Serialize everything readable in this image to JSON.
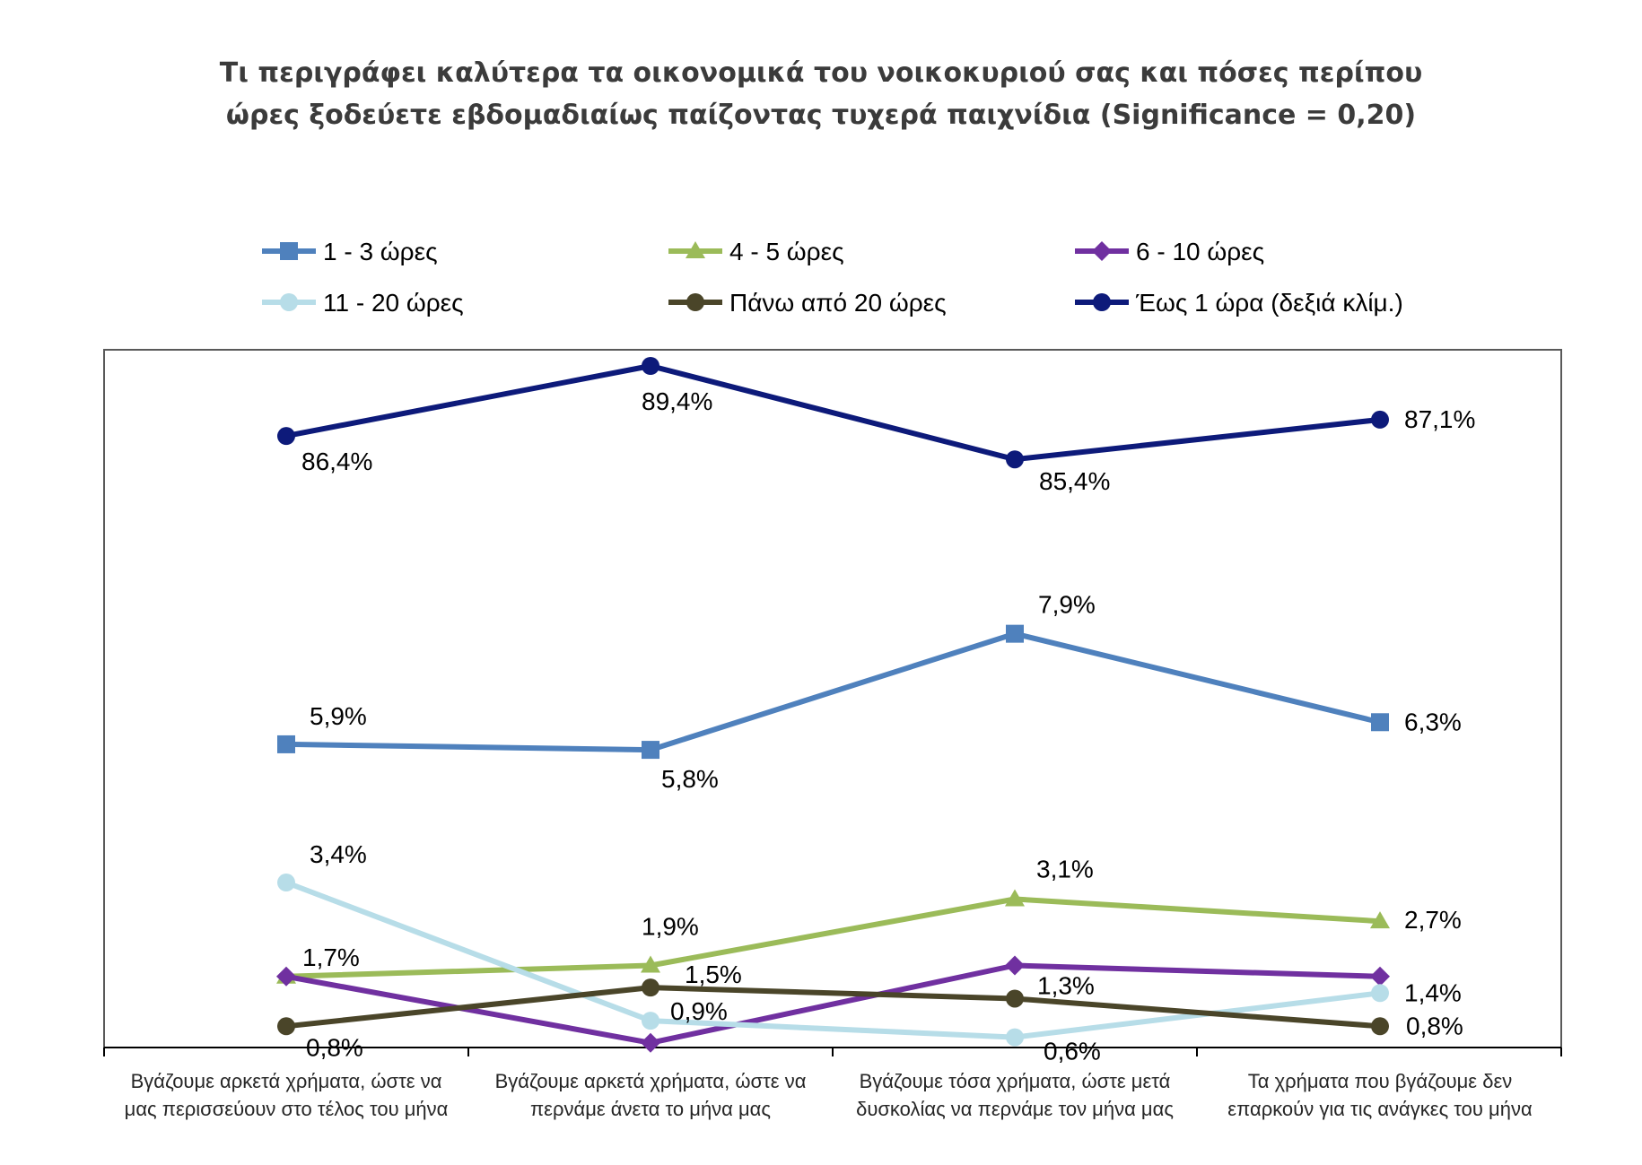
{
  "chart_data": {
    "type": "line",
    "title": "Τι περιγράφει καλύτερα τα οικονομικά του νοικοκυριού σας και πόσες περίπου",
    "subtitle": "ώρες ξοδεύετε εβδομαδιαίως παίζοντας τυχερά παιχνίδια (Significance = 0,20)",
    "categories": [
      [
        "Βγάζουμε αρκετά χρήματα, ώστε να",
        "μας περισσεύουν στο τέλος του μήνα"
      ],
      [
        "Βγάζουμε αρκετά χρήματα, ώστε να",
        "περνάμε άνετα το μήνα μας"
      ],
      [
        "Βγάζουμε τόσα χρήματα, ώστε μετά",
        "δυσκολίας να  περνάμε τον μήνα μας"
      ],
      [
        "Τα χρήματα που βγάζουμε δεν",
        "επαρκούν για τις ανάγκες του μήνα"
      ]
    ],
    "legend_placement": "top",
    "grid": false,
    "left_axis_range": [
      0,
      12.5
    ],
    "right_axis_range": [
      69,
      91.5
    ],
    "series": [
      {
        "name": "1 - 3 ώρες",
        "color": "#4f81bd",
        "marker": "square",
        "axis": "left",
        "values": [
          5.9,
          5.8,
          7.9,
          6.3
        ],
        "labels": [
          "5,9%",
          "5,8%",
          "7,9%",
          "6,3%"
        ]
      },
      {
        "name": "4 - 5 ώρες",
        "color": "#9bbb59",
        "marker": "triangle",
        "axis": "left",
        "values": [
          1.7,
          1.9,
          3.1,
          2.7
        ],
        "labels": [
          "1,7%",
          "1,9%",
          "3,1%",
          "2,7%"
        ]
      },
      {
        "name": "6 - 10 ώρες",
        "color": "#7030a0",
        "marker": "diamond",
        "axis": "left",
        "values": [
          1.7,
          0.5,
          1.9,
          1.7
        ],
        "labels": [
          "",
          "",
          "",
          ""
        ]
      },
      {
        "name": "11 - 20 ώρες",
        "color": "#b7dde8",
        "marker": "circle",
        "axis": "left",
        "values": [
          3.4,
          0.9,
          0.6,
          1.4
        ],
        "labels": [
          "3,4%",
          "0,9%",
          "0,6%",
          "1,4%"
        ]
      },
      {
        "name": "Πάνω από 20 ώρες",
        "color": "#4a4529",
        "marker": "circle",
        "axis": "left",
        "values": [
          0.8,
          1.5,
          1.3,
          0.8
        ],
        "labels": [
          "0,8%",
          "1,5%",
          "1,3%",
          "0,8%"
        ]
      },
      {
        "name": "Έως 1 ώρα (δεξιά κλίμ.)",
        "color": "#0d1a7a",
        "marker": "circle",
        "axis": "right",
        "values": [
          86.4,
          89.4,
          85.4,
          87.1
        ],
        "labels": [
          "86,4%",
          "89,4%",
          "85,4%",
          "87,1%"
        ]
      }
    ]
  }
}
